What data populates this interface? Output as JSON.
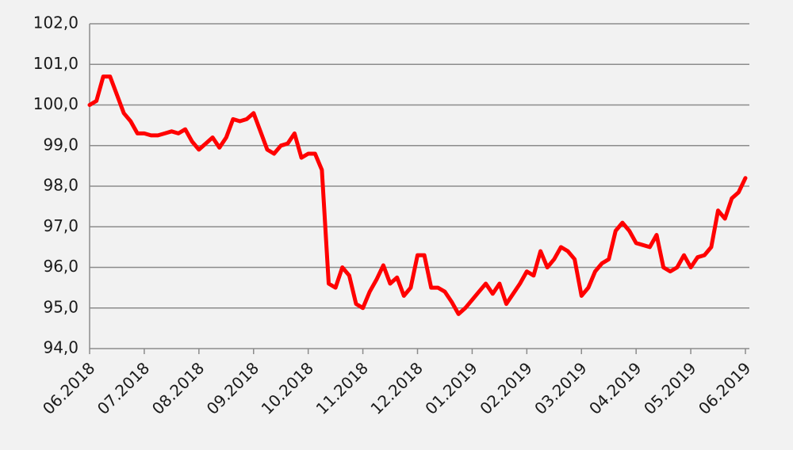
{
  "chart_data": {
    "type": "line",
    "categories": [
      "06.2018",
      null,
      null,
      null,
      null,
      null,
      null,
      null,
      "07.2018",
      null,
      null,
      null,
      null,
      null,
      null,
      null,
      "08.2018",
      null,
      null,
      null,
      null,
      null,
      null,
      null,
      "09.2018",
      null,
      null,
      null,
      null,
      null,
      null,
      null,
      "10.2018",
      null,
      null,
      null,
      null,
      null,
      null,
      null,
      "11.2018",
      null,
      null,
      null,
      null,
      null,
      null,
      null,
      "12.2018",
      null,
      null,
      null,
      null,
      null,
      null,
      null,
      "01.2019",
      null,
      null,
      null,
      null,
      null,
      null,
      null,
      "02.2019",
      null,
      null,
      null,
      null,
      null,
      null,
      null,
      "03.2019",
      null,
      null,
      null,
      null,
      null,
      null,
      null,
      "04.2019",
      null,
      null,
      null,
      null,
      null,
      null,
      null,
      "05.2019",
      null,
      null,
      null,
      null,
      null,
      null,
      null,
      "06.2019"
    ],
    "values": [
      100.0,
      100.1,
      100.7,
      100.7,
      100.25,
      99.8,
      99.6,
      99.3,
      99.3,
      99.25,
      99.25,
      99.3,
      99.35,
      99.3,
      99.4,
      99.1,
      98.9,
      99.05,
      99.2,
      98.95,
      99.2,
      99.65,
      99.6,
      99.65,
      99.8,
      99.35,
      98.9,
      98.8,
      99.0,
      99.05,
      99.3,
      98.7,
      98.8,
      98.8,
      98.4,
      95.6,
      95.5,
      96.0,
      95.8,
      95.1,
      95.0,
      95.4,
      95.7,
      96.05,
      95.6,
      95.75,
      95.3,
      95.5,
      96.3,
      96.3,
      95.5,
      95.5,
      95.4,
      95.15,
      94.85,
      95.0,
      95.2,
      95.4,
      95.6,
      95.35,
      95.6,
      95.1,
      95.35,
      95.6,
      95.9,
      95.8,
      96.4,
      96.0,
      96.2,
      96.5,
      96.4,
      96.2,
      95.3,
      95.5,
      95.9,
      96.1,
      96.2,
      96.9,
      97.1,
      96.9,
      96.6,
      96.55,
      96.5,
      96.8,
      96.0,
      95.9,
      96.0,
      96.3,
      96.0,
      96.25,
      96.3,
      96.5,
      97.4,
      97.2,
      97.7,
      97.85,
      98.2
    ],
    "color": "#ff0000",
    "ylim": [
      94,
      102
    ],
    "yticks": [
      {
        "value": 94,
        "label": "94,0"
      },
      {
        "value": 95,
        "label": "95,0"
      },
      {
        "value": 96,
        "label": "96,0"
      },
      {
        "value": 97,
        "label": "97,0"
      },
      {
        "value": 98,
        "label": "98,0"
      },
      {
        "value": 99,
        "label": "99,0"
      },
      {
        "value": 100,
        "label": "100,0"
      },
      {
        "value": 101,
        "label": "101,0"
      },
      {
        "value": 102,
        "label": "102,0"
      }
    ],
    "grid": true
  }
}
